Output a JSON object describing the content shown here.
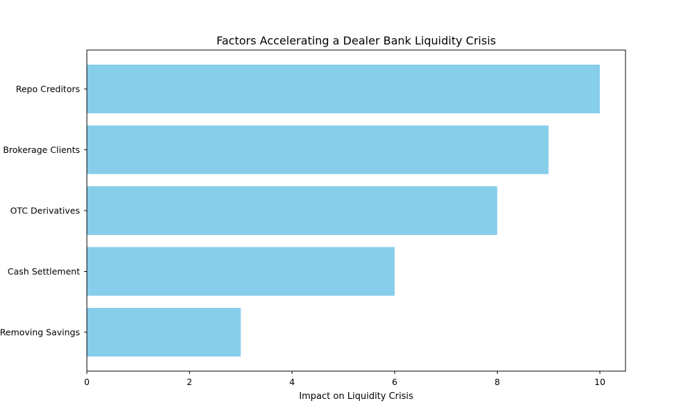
{
  "chart_data": {
    "type": "bar",
    "orientation": "horizontal",
    "title": "Factors Accelerating a Dealer Bank Liquidity Crisis",
    "xlabel": "Impact on Liquidity Crisis",
    "ylabel": "",
    "categories": [
      "Repo Creditors",
      "Brokerage Clients",
      "OTC Derivatives",
      "Cash Settlement",
      "Removing Savings"
    ],
    "values": [
      10,
      9,
      8,
      6,
      3
    ],
    "xlim": [
      0,
      10.5
    ],
    "xticks": [
      0,
      2,
      4,
      6,
      8,
      10
    ],
    "grid": false,
    "bar_color": "#87CEEB"
  }
}
